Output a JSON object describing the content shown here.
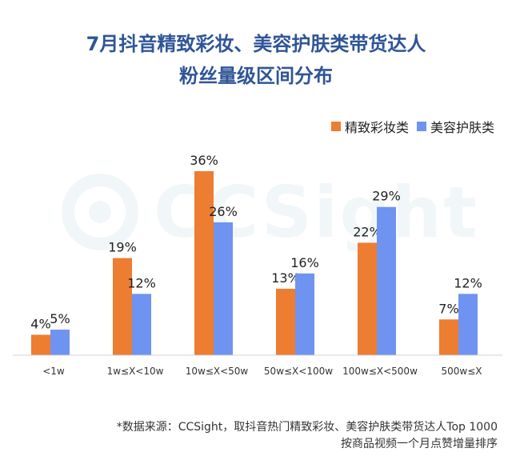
{
  "title_line1": "7月抖音精致彩妆、美容护肤类带货达人",
  "title_line2": "粉丝量级区间分布",
  "watermark": "CCSight",
  "footnote_line1": "*数据来源：CCSight，取抖音热门精致彩妆、美容护肤类带货达人Top 1000",
  "footnote_line2": "按商品视频一个月点赞增量排序",
  "colors": {
    "series1": "#ed7d31",
    "series2": "#6f93f0",
    "title": "#2f5597"
  },
  "chart_data": {
    "type": "bar",
    "title": "7月抖音精致彩妆、美容护肤类带货达人粉丝量级区间分布",
    "categories": [
      "<1w",
      "1w≤X<10w",
      "10w≤X<50w",
      "50w≤X<100w",
      "100w≤X<500w",
      "500w≤X"
    ],
    "series": [
      {
        "name": "精致彩妆类",
        "values": [
          4,
          19,
          36,
          13,
          22,
          7
        ],
        "labels": [
          "4%",
          "19%",
          "36%",
          "13%",
          "22%",
          "7%"
        ],
        "color": "#ed7d31"
      },
      {
        "name": "美容护肤类",
        "values": [
          5,
          12,
          26,
          16,
          29,
          12
        ],
        "labels": [
          "5%",
          "12%",
          "26%",
          "16%",
          "29%",
          "12%"
        ],
        "color": "#6f93f0"
      }
    ],
    "xlabel": "",
    "ylabel": "",
    "ylim": [
      0,
      36
    ],
    "grid": false,
    "legend": "top-right"
  }
}
